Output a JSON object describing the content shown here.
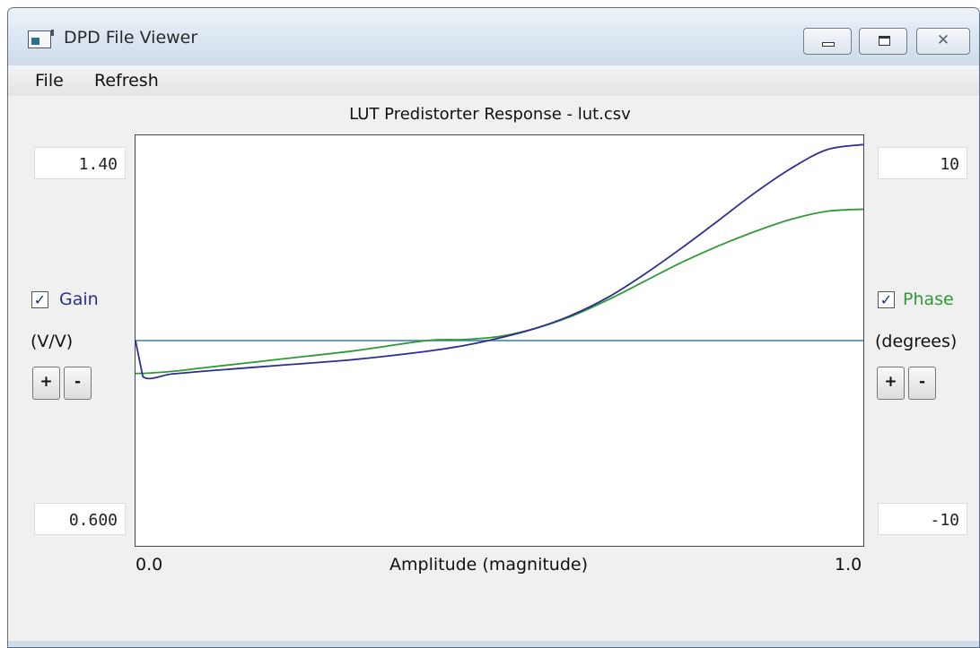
{
  "window": {
    "title": "DPD File Viewer"
  },
  "menu": {
    "file": "File",
    "refresh": "Refresh"
  },
  "chart_title": "LUT Predistorter Response - lut.csv",
  "gain": {
    "label": "Gain",
    "unit": "(V/V)",
    "max": "1.40",
    "min": "0.600",
    "checked": true,
    "color": "#2b2f8f",
    "plus": "+",
    "minus": "-"
  },
  "phase": {
    "label": "Phase",
    "unit": "(degrees)",
    "max": "10",
    "min": "-10",
    "checked": true,
    "color": "#2f9a35",
    "plus": "+",
    "minus": "-"
  },
  "x_axis": {
    "label": "Amplitude (magnitude)",
    "min": "0.0",
    "max": "1.0"
  },
  "chart_data": {
    "type": "line",
    "title": "LUT Predistorter Response - lut.csv",
    "xlabel": "Amplitude (magnitude)",
    "xlim": [
      0.0,
      1.0
    ],
    "y_left": {
      "label": "Gain (V/V)",
      "lim": [
        0.6,
        1.4
      ]
    },
    "y_right": {
      "label": "Phase (degrees)",
      "lim": [
        -10,
        10
      ]
    },
    "grid": false,
    "series": [
      {
        "name": "Gain",
        "axis": "left",
        "color": "#2b2f8f",
        "x": [
          0.0,
          0.01,
          0.05,
          0.1,
          0.2,
          0.3,
          0.4,
          0.45,
          0.5,
          0.55,
          0.6,
          0.65,
          0.7,
          0.75,
          0.8,
          0.85,
          0.9,
          0.95,
          1.0
        ],
        "y": [
          1.0,
          0.93,
          0.935,
          0.941,
          0.952,
          0.963,
          0.979,
          0.99,
          1.005,
          1.024,
          1.05,
          1.085,
          1.13,
          1.18,
          1.233,
          1.287,
          1.335,
          1.372,
          1.382
        ]
      },
      {
        "name": "Phase",
        "axis": "right",
        "color": "#2f9a35",
        "x": [
          0.0,
          0.01,
          0.05,
          0.1,
          0.2,
          0.3,
          0.4,
          0.45,
          0.5,
          0.55,
          0.6,
          0.65,
          0.7,
          0.75,
          0.8,
          0.85,
          0.9,
          0.95,
          1.0
        ],
        "y": [
          -1.6,
          -1.6,
          -1.5,
          -1.3,
          -0.9,
          -0.5,
          0.0,
          0.05,
          0.2,
          0.6,
          1.2,
          2.0,
          2.9,
          3.8,
          4.6,
          5.3,
          5.9,
          6.3,
          6.4
        ]
      },
      {
        "name": "",
        "axis": "left",
        "color": "#3a78b8",
        "x": [
          0.0,
          1.0
        ],
        "y": [
          1.0,
          1.0
        ]
      }
    ]
  }
}
